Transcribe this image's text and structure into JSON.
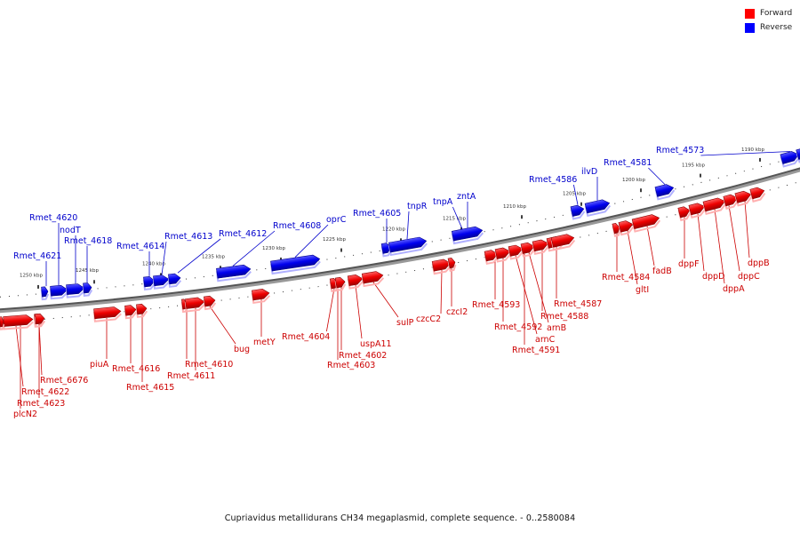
{
  "legend": {
    "forward": {
      "label": "Forward",
      "color": "#ff0000"
    },
    "reverse": {
      "label": "Reverse",
      "color": "#0000ff"
    }
  },
  "caption": "Cupriavidus metallidurans CH34 megaplasmid, complete sequence. - 0..2580084",
  "scale_labels": [
    "1250 kbp",
    "1245 kbp",
    "1240 kbp",
    "1235 kbp",
    "1230 kbp",
    "1225 kbp",
    "1220 kbp",
    "1215 kbp",
    "1210 kbp",
    "1205 kbp",
    "1200 kbp",
    "1195 kbp",
    "1190 kbp"
  ],
  "reverse_genes": [
    "Rmet_4621",
    "Rmet_4620",
    "nodT",
    "Rmet_4618",
    "Rmet_4614",
    "Rmet_4613",
    "Rmet_4612",
    "Rmet_4608",
    "oprC",
    "Rmet_4605",
    "tnpR",
    "tnpA",
    "zntA",
    "Rmet_4586",
    "ilvD",
    "Rmet_4581",
    "Rmet_4573"
  ],
  "forward_genes": [
    "Rmet_6676",
    "Rmet_4622",
    "Rmet_4623",
    "plcN2",
    "piuA",
    "Rmet_4616",
    "Rmet_4615",
    "Rmet_4610",
    "Rmet_4611",
    "bug",
    "metY",
    "Rmet_4604",
    "Rmet_4602",
    "Rmet_4603",
    "uspA11",
    "sulP",
    "czcC2",
    "czcI2",
    "Rmet_4593",
    "Rmet_4592",
    "arnC",
    "Rmet_4591",
    "arnB",
    "Rmet_4588",
    "Rmet_4587",
    "Rmet_4584",
    "gltI",
    "fadB",
    "dppF",
    "dppD",
    "dppA",
    "dppC",
    "dppB"
  ]
}
